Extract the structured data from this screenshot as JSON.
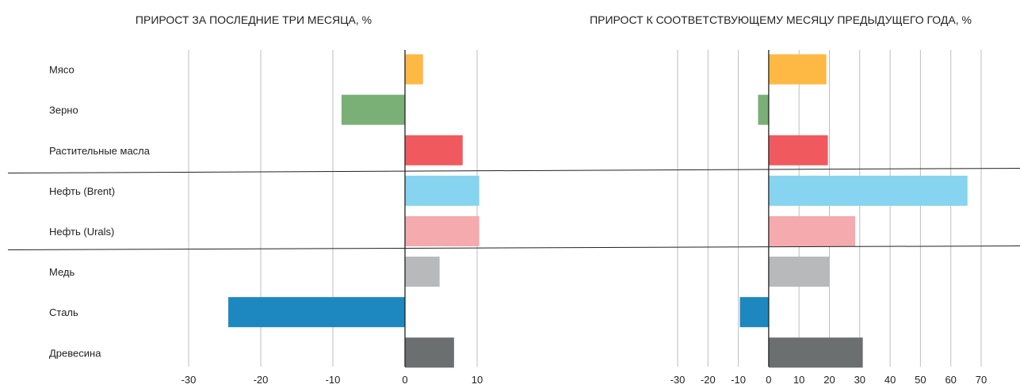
{
  "chart_data": [
    {
      "type": "bar",
      "orientation": "horizontal",
      "title": "ПРИРОСТ ЗА ПОСЛЕДНИЕ ТРИ МЕСЯЦА, %",
      "categories": [
        "Мясо",
        "Зерно",
        "Растительные масла",
        "Нефть (Brent)",
        "Нефть (Urals)",
        "Медь",
        "Сталь",
        "Древесина"
      ],
      "values": [
        2.5,
        -8.8,
        8.0,
        10.3,
        10.3,
        4.8,
        -24.5,
        6.8
      ],
      "xlim": [
        -30,
        10
      ],
      "xticks": [
        -30,
        -20,
        -10,
        0,
        10
      ],
      "grid": true
    },
    {
      "type": "bar",
      "orientation": "horizontal",
      "title": "ПРИРОСТ К СООТВЕТСТВУЮЩЕМУ МЕСЯЦУ ПРЕДЫДУЩЕГО ГОДА, %",
      "categories": [
        "Мясо",
        "Зерно",
        "Растительные масла",
        "Нефть (Brent)",
        "Нефть (Urals)",
        "Медь",
        "Сталь",
        "Древесина"
      ],
      "values": [
        19,
        -3.5,
        19.5,
        65.5,
        28.5,
        20,
        -9.5,
        31
      ],
      "xlim": [
        -30,
        70
      ],
      "xticks": [
        -30,
        -20,
        -10,
        0,
        10,
        20,
        30,
        40,
        50,
        60,
        70
      ],
      "grid": true
    }
  ],
  "colors": [
    "#FDB944",
    "#7AAF76",
    "#F05A5F",
    "#86D4EF",
    "#F5AAAE",
    "#B8B9BB",
    "#1D88C0",
    "#6C6F70"
  ]
}
